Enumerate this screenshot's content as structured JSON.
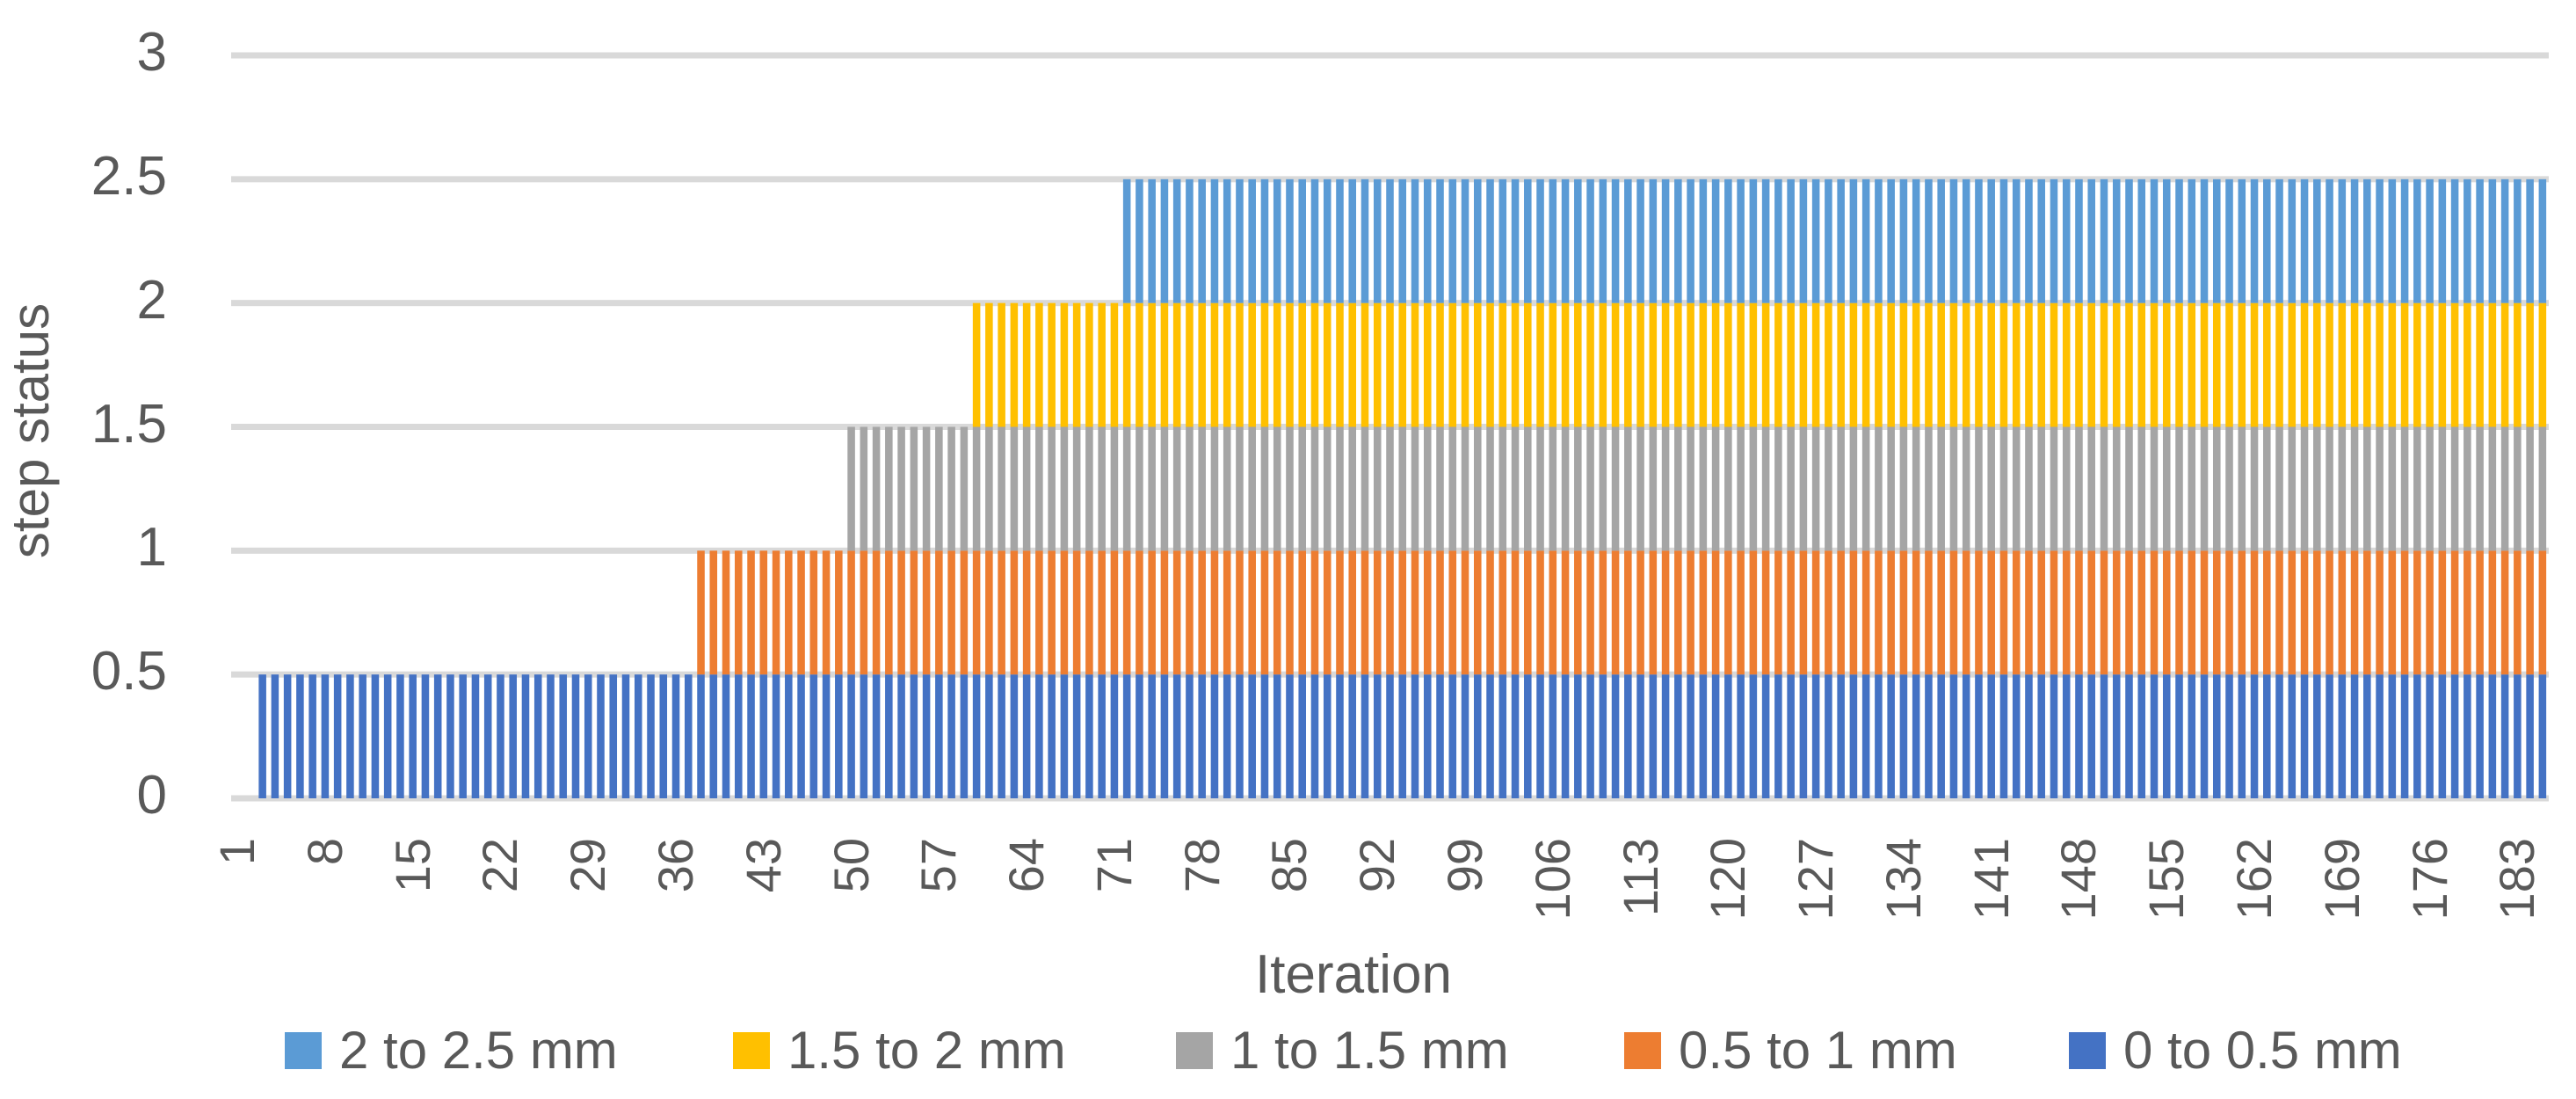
{
  "chart_data": {
    "type": "bar",
    "stacked": true,
    "title": "",
    "xlabel": "Iteration",
    "ylabel": "step status",
    "ylim": [
      0,
      3
    ],
    "yticks": [
      "0",
      "0.5",
      "1",
      "1.5",
      "2",
      "2.5",
      "3"
    ],
    "x_range": [
      1,
      185
    ],
    "xtick_labels": [
      "1",
      "8",
      "15",
      "22",
      "29",
      "36",
      "43",
      "50",
      "57",
      "64",
      "71",
      "78",
      "85",
      "92",
      "99",
      "106",
      "113",
      "120",
      "127",
      "134",
      "141",
      "148",
      "155",
      "162",
      "169",
      "176",
      "183"
    ],
    "grid": true,
    "legend_position": "bottom",
    "series": [
      {
        "name": "0 to 0.5 mm",
        "color": "#4472C4",
        "segment_value": 0.5,
        "start_iteration": 3,
        "end_iteration": 185
      },
      {
        "name": "0.5 to 1 mm",
        "color": "#ED7D31",
        "segment_value": 0.5,
        "start_iteration": 38,
        "end_iteration": 185
      },
      {
        "name": "1 to 1.5 mm",
        "color": "#A5A5A5",
        "segment_value": 0.5,
        "start_iteration": 50,
        "end_iteration": 185
      },
      {
        "name": "1.5 to 2 mm",
        "color": "#FFC000",
        "segment_value": 0.5,
        "start_iteration": 60,
        "end_iteration": 185
      },
      {
        "name": "2 to 2.5 mm",
        "color": "#5B9BD5",
        "segment_value": 0.5,
        "start_iteration": 72,
        "end_iteration": 185
      }
    ],
    "summary": "Stacked step chart: each iteration's step status grows by 0.5 as each distance band activates; total reaches 2.5 from iteration 72 onward."
  },
  "legend": [
    {
      "label": "2 to 2.5 mm",
      "color": "#5B9BD5",
      "x": 324
    },
    {
      "label": "1.5 to 2 mm",
      "color": "#FFC000",
      "x": 834
    },
    {
      "label": "1 to 1.5 mm",
      "color": "#A5A5A5",
      "x": 1338
    },
    {
      "label": "0.5 to 1 mm",
      "color": "#ED7D31",
      "x": 1848
    },
    {
      "label": "0 to 0.5 mm",
      "color": "#4472C4",
      "x": 2354
    }
  ],
  "axes": {
    "xlabel": "Iteration",
    "ylabel": "step status"
  },
  "style": {
    "grid_color": "#D9D9D9",
    "text_color": "#595959"
  }
}
